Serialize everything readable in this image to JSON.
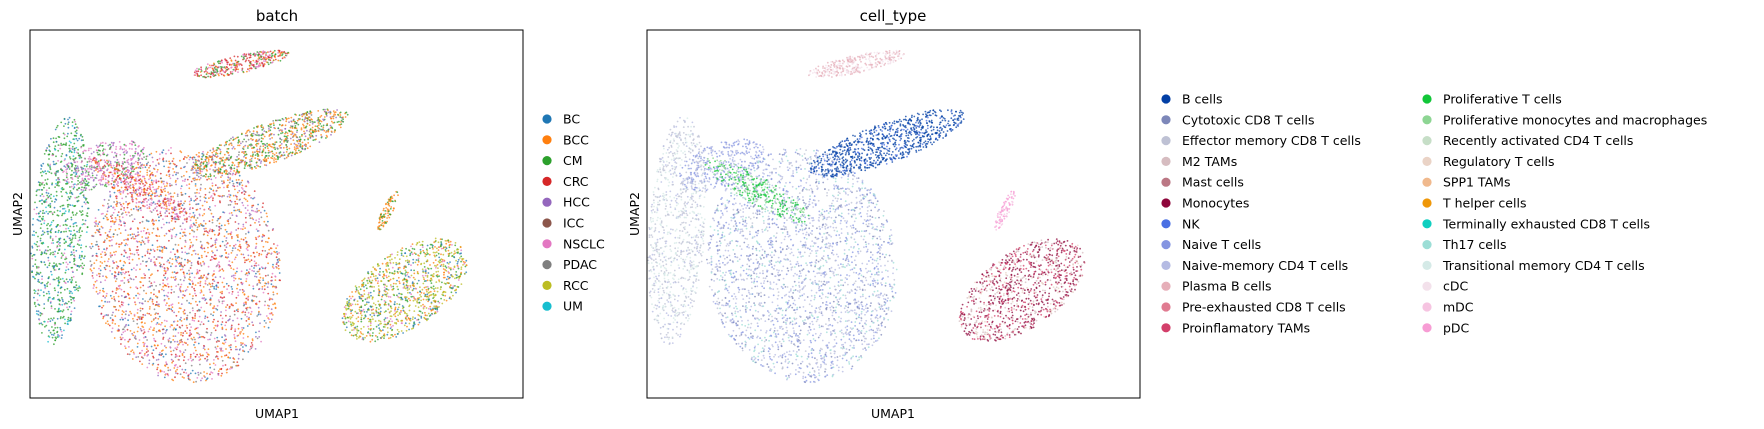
{
  "figure": {
    "background": "#ffffff"
  },
  "chart_data": [
    {
      "type": "scatter",
      "title": "batch",
      "xlabel": "UMAP1",
      "ylabel": "UMAP2",
      "grid": false,
      "xticks": false,
      "yticks": false,
      "legend_placement": "right",
      "legend": [
        {
          "label": "BC",
          "color": "#1f77b4"
        },
        {
          "label": "BCC",
          "color": "#ff7f0e"
        },
        {
          "label": "CM",
          "color": "#2ca02c"
        },
        {
          "label": "CRC",
          "color": "#d62728"
        },
        {
          "label": "HCC",
          "color": "#9467bd"
        },
        {
          "label": "ICC",
          "color": "#8c564b"
        },
        {
          "label": "NSCLC",
          "color": "#e377c2"
        },
        {
          "label": "PDAC",
          "color": "#7f7f7f"
        },
        {
          "label": "RCC",
          "color": "#bcbd22"
        },
        {
          "label": "UM",
          "color": "#17becf"
        }
      ]
    },
    {
      "type": "scatter",
      "title": "cell_type",
      "xlabel": "UMAP1",
      "ylabel": "UMAP2",
      "grid": false,
      "xticks": false,
      "yticks": false,
      "legend_placement": "right",
      "legend_columns": 2,
      "legend": [
        {
          "label": "B cells",
          "color": "#023fa5"
        },
        {
          "label": "Cytotoxic CD8 T cells",
          "color": "#7d87b9"
        },
        {
          "label": "Effector memory CD8 T cells",
          "color": "#bec1d4"
        },
        {
          "label": "M2 TAMs",
          "color": "#d6bcc0"
        },
        {
          "label": "Mast cells",
          "color": "#bb7784"
        },
        {
          "label": "Monocytes",
          "color": "#8e063b"
        },
        {
          "label": "NK",
          "color": "#4a6fe3"
        },
        {
          "label": "Naive T cells",
          "color": "#8595e1"
        },
        {
          "label": "Naive-memory CD4 T cells",
          "color": "#b5bbe3"
        },
        {
          "label": "Plasma B cells",
          "color": "#e6afb9"
        },
        {
          "label": "Pre-exhausted CD8 T cells",
          "color": "#e07b91"
        },
        {
          "label": "Proinflamatory TAMs",
          "color": "#d33f6a"
        },
        {
          "label": "Proliferative T cells",
          "color": "#11c638"
        },
        {
          "label": "Proliferative monocytes and macrophages",
          "color": "#8dd593"
        },
        {
          "label": "Recently activated CD4 T cells",
          "color": "#c6dec7"
        },
        {
          "label": "Regulatory T cells",
          "color": "#ead3c6"
        },
        {
          "label": "SPP1 TAMs",
          "color": "#f0b98d"
        },
        {
          "label": "T helper cells",
          "color": "#ef9708"
        },
        {
          "label": "Terminally exhausted CD8 T cells",
          "color": "#0fcfc0"
        },
        {
          "label": "Th17 cells",
          "color": "#9cded6"
        },
        {
          "label": "Transitional memory CD4 T cells",
          "color": "#d5eae7"
        },
        {
          "label": "cDC",
          "color": "#f3e1eb"
        },
        {
          "label": "mDC",
          "color": "#f6c4e1"
        },
        {
          "label": "pDC",
          "color": "#f79cd4"
        }
      ]
    }
  ]
}
